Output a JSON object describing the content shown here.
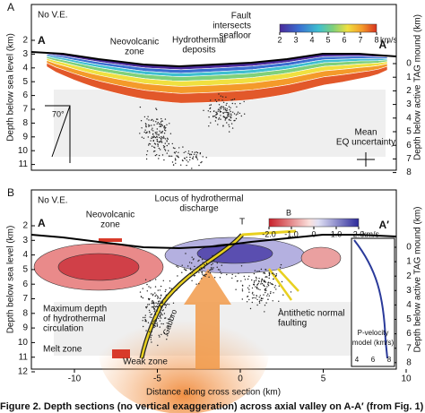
{
  "panels": [
    {
      "label": "A",
      "no_ve": "No V.E.",
      "left_axis_title": "Depth below sea level (km)",
      "right_axis_title": "Depth below active TAG mound (km)",
      "left_ticks": [
        2,
        3,
        4,
        5,
        6,
        7,
        8,
        9,
        10,
        11
      ],
      "right_ticks": [
        0,
        1,
        2,
        3,
        4,
        5,
        6,
        7,
        8
      ],
      "section_ends": [
        "A",
        "A′"
      ],
      "annotations": [
        [
          "Neovolcanic",
          "zone"
        ],
        [
          "Hydrothermal",
          "deposits"
        ],
        [
          "Fault",
          "intersects",
          "seafloor"
        ],
        [
          "Mean",
          "EQ uncertainty"
        ],
        [
          "70°"
        ]
      ],
      "colorbar": {
        "ticks": [
          2,
          3,
          4,
          5,
          6,
          7,
          8
        ],
        "unit": "km/s"
      }
    },
    {
      "label": "B",
      "no_ve": "No V.E.",
      "left_axis_title": "Depth below sea level (km)",
      "right_axis_title": "Depth below active TAG mound (km)",
      "left_ticks": [
        2,
        3,
        4,
        5,
        6,
        7,
        8,
        9,
        10,
        11,
        12
      ],
      "right_ticks": [
        0,
        1,
        2,
        3,
        4,
        5,
        6,
        7,
        8
      ],
      "section_ends": [
        "A",
        "A′"
      ],
      "annotations": [
        [
          "Neovolcanic",
          "zone"
        ],
        [
          "Locus of hydrothermal",
          "discharge"
        ],
        [
          "T"
        ],
        [
          "B"
        ],
        [
          "Maximum depth",
          "of hydrothermal",
          "circulation"
        ],
        [
          "Melt zone"
        ],
        [
          "Weak zone"
        ],
        [
          "Gabbro"
        ],
        [
          "Antithetic normal",
          "faulting"
        ]
      ],
      "colorbar": {
        "ticks": [
          {
            "value": -2,
            "label": "-2.0"
          },
          {
            "value": -1,
            "label": "-1.0"
          },
          0,
          {
            "value": 1,
            "label": "1.0"
          },
          {
            "value": 2,
            "label": "2.0"
          }
        ],
        "unit": "km/s"
      },
      "inset": {
        "title": [
          "P-velocity",
          "model (km/s)"
        ],
        "ticks": [
          4,
          6,
          8
        ]
      }
    }
  ],
  "x_axis": {
    "title": "Distance along cross section (km)",
    "ticks": [
      -10,
      -5,
      0,
      5,
      10
    ]
  },
  "caption": "Figure 2. Depth sections (no vertical exaggeration) across axial valley on A-A′ (from Fig. 1)"
}
